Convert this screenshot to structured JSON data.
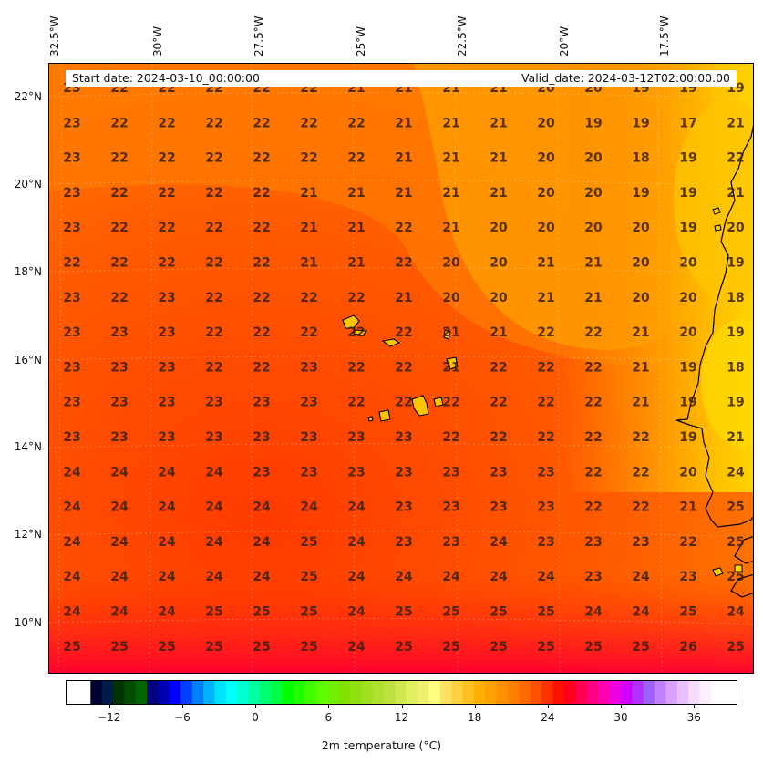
{
  "header": {
    "start_date": "Start date: 2024-03-10_00:00:00",
    "valid_date": "Valid_date: 2024-03-12T02:00:00.00"
  },
  "axes": {
    "longitude_labels": [
      "32.5°W",
      "30°W",
      "27.5°W",
      "25°W",
      "22.5°W",
      "20°W",
      "17.5°W"
    ],
    "latitude_labels": [
      "22°N",
      "20°N",
      "18°N",
      "16°N",
      "14°N",
      "12°N",
      "10°N"
    ]
  },
  "map": {
    "projection": "regional lat-lon",
    "gridlines": true,
    "land_outline_color": "#000000",
    "temperature_grid": [
      [
        23,
        22,
        22,
        22,
        22,
        22,
        21,
        21,
        21,
        21,
        20,
        20,
        19,
        19,
        19
      ],
      [
        23,
        22,
        22,
        22,
        22,
        22,
        22,
        21,
        21,
        21,
        20,
        19,
        19,
        17,
        21
      ],
      [
        23,
        22,
        22,
        22,
        22,
        22,
        22,
        21,
        21,
        21,
        20,
        20,
        18,
        19,
        22
      ],
      [
        23,
        22,
        22,
        22,
        22,
        21,
        21,
        21,
        21,
        21,
        20,
        20,
        19,
        19,
        21
      ],
      [
        23,
        22,
        22,
        22,
        22,
        21,
        21,
        22,
        21,
        20,
        20,
        20,
        20,
        19,
        20
      ],
      [
        22,
        22,
        22,
        22,
        22,
        21,
        21,
        22,
        20,
        20,
        21,
        21,
        20,
        20,
        19
      ],
      [
        23,
        22,
        23,
        22,
        22,
        22,
        22,
        21,
        20,
        20,
        21,
        21,
        20,
        20,
        18
      ],
      [
        23,
        23,
        23,
        22,
        22,
        22,
        22,
        22,
        21,
        21,
        22,
        22,
        21,
        20,
        19
      ],
      [
        23,
        23,
        23,
        22,
        22,
        23,
        22,
        22,
        21,
        22,
        22,
        22,
        21,
        19,
        18
      ],
      [
        23,
        23,
        23,
        23,
        23,
        23,
        22,
        22,
        22,
        22,
        22,
        22,
        21,
        19,
        19
      ],
      [
        23,
        23,
        23,
        23,
        23,
        23,
        23,
        23,
        22,
        22,
        22,
        22,
        22,
        19,
        21
      ],
      [
        24,
        24,
        24,
        24,
        23,
        23,
        23,
        23,
        23,
        23,
        23,
        22,
        22,
        20,
        24
      ],
      [
        24,
        24,
        24,
        24,
        24,
        24,
        24,
        23,
        23,
        23,
        23,
        22,
        22,
        21,
        25
      ],
      [
        24,
        24,
        24,
        24,
        24,
        25,
        24,
        23,
        23,
        24,
        23,
        23,
        23,
        22,
        25
      ],
      [
        24,
        24,
        24,
        24,
        24,
        25,
        24,
        24,
        24,
        24,
        24,
        23,
        24,
        23,
        25
      ],
      [
        24,
        24,
        24,
        25,
        25,
        25,
        24,
        25,
        25,
        25,
        25,
        24,
        24,
        25,
        24
      ],
      [
        25,
        25,
        25,
        25,
        25,
        25,
        24,
        25,
        25,
        25,
        25,
        25,
        25,
        26,
        25
      ]
    ]
  },
  "colorbar": {
    "tick_labels": [
      "−12",
      "−6",
      "0",
      "6",
      "12",
      "18",
      "24",
      "30",
      "36"
    ],
    "title": "2m temperature ($^\\circ$C)",
    "title_display": "2m temperature (°C)",
    "range": [
      -15.5,
      39.5
    ]
  }
}
